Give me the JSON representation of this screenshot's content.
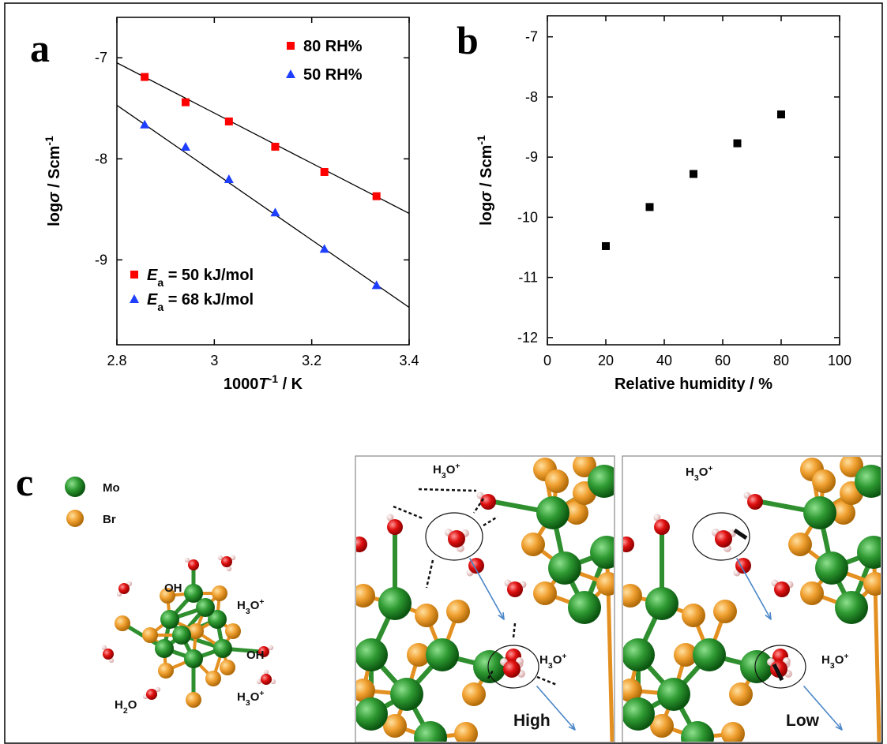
{
  "chart_data": [
    {
      "type": "scatter",
      "x_label": [
        {
          "t": "1000"
        },
        {
          "i": "T"
        },
        {
          "sup": "-1"
        },
        {
          "t": " / K"
        }
      ],
      "y_label": [
        {
          "t": "log"
        },
        {
          "i": "σ"
        },
        {
          "t": " / Scm"
        },
        {
          "sup": "-1"
        }
      ],
      "xlim": [
        2.8,
        3.4
      ],
      "ylim": [
        -9.84,
        -6.6
      ],
      "xticks": [
        2.8,
        3,
        3.2,
        3.4
      ],
      "yticks": [
        -7,
        -8,
        -9
      ],
      "legend": "upper right",
      "series": [
        {
          "name": "80 RH%",
          "color": "#ff0000",
          "marker": "square",
          "x": [
            2.857,
            2.941,
            3.03,
            3.125,
            3.226,
            3.333
          ],
          "values": [
            -7.19,
            -7.44,
            -7.63,
            -7.88,
            -8.13,
            -8.37
          ]
        },
        {
          "name": "50 RH%",
          "color": "#1f3fff",
          "marker": "triangle",
          "x": [
            2.857,
            2.941,
            3.03,
            3.125,
            3.226,
            3.333
          ],
          "values": [
            -7.66,
            -7.88,
            -8.2,
            -8.53,
            -8.89,
            -9.25
          ]
        }
      ],
      "fit_lines": [
        {
          "color": "#000000",
          "x": [
            2.8,
            3.4
          ],
          "values": [
            -7.05,
            -8.54
          ]
        },
        {
          "color": "#000000",
          "x": [
            2.8,
            3.4
          ],
          "values": [
            -7.47,
            -9.47
          ]
        }
      ],
      "annotations": [
        {
          "marker": "square",
          "color": "#ff0000",
          "parts": [
            {
              "i": "E"
            },
            {
              "sub": "a"
            },
            {
              "t": " = 50 kJ/mol"
            }
          ]
        },
        {
          "marker": "triangle",
          "color": "#1f3fff",
          "parts": [
            {
              "i": "E"
            },
            {
              "sub": "a"
            },
            {
              "t": " = 68 kJ/mol"
            }
          ]
        }
      ]
    },
    {
      "type": "scatter",
      "x_label": [
        {
          "t": "Relative humidity / %"
        }
      ],
      "y_label": [
        {
          "t": "log"
        },
        {
          "i": "σ"
        },
        {
          "t": " / Scm"
        },
        {
          "sup": "-1"
        }
      ],
      "xlim": [
        0,
        100
      ],
      "ylim": [
        -12.12,
        -6.65
      ],
      "xticks": [
        0,
        20,
        40,
        60,
        80,
        100
      ],
      "yticks": [
        -7,
        -8,
        -9,
        -10,
        -11,
        -12
      ],
      "series": [
        {
          "color": "#000000",
          "marker": "square",
          "x": [
            20,
            35,
            50,
            65,
            80
          ],
          "values": [
            -10.48,
            -9.83,
            -9.28,
            -8.77,
            -8.29
          ]
        }
      ]
    }
  ],
  "panel_labels": [
    "a",
    "b",
    "c"
  ],
  "panel_c": {
    "labels": [
      {
        "parts": [
          {
            "t": "Mo"
          }
        ]
      },
      {
        "parts": [
          {
            "t": "Br"
          }
        ]
      },
      {
        "parts": [
          {
            "t": "OH"
          }
        ]
      },
      {
        "parts": [
          {
            "t": "H"
          },
          {
            "sub": "3"
          },
          {
            "t": "O"
          },
          {
            "sup": "+"
          }
        ]
      },
      {
        "parts": [
          {
            "t": "OH"
          }
        ]
      },
      {
        "parts": [
          {
            "t": "H"
          },
          {
            "sub": "3"
          },
          {
            "t": "O"
          },
          {
            "sup": "+"
          }
        ]
      },
      {
        "parts": [
          {
            "t": "H"
          },
          {
            "sub": "2"
          },
          {
            "t": "O"
          }
        ]
      },
      {
        "parts": [
          {
            "t": "H"
          },
          {
            "sub": "3"
          },
          {
            "t": "O"
          },
          {
            "sup": "+"
          }
        ]
      },
      {
        "parts": [
          {
            "t": "H"
          },
          {
            "sub": "3"
          },
          {
            "t": "O"
          },
          {
            "sup": "+"
          }
        ]
      },
      {
        "parts": [
          {
            "t": "High"
          }
        ]
      },
      {
        "parts": [
          {
            "t": "H"
          },
          {
            "sub": "3"
          },
          {
            "t": "O"
          },
          {
            "sup": "+"
          }
        ]
      },
      {
        "parts": [
          {
            "t": "H"
          },
          {
            "sub": "3"
          },
          {
            "t": "O"
          },
          {
            "sup": "+"
          }
        ]
      },
      {
        "parts": [
          {
            "t": "Low"
          }
        ]
      }
    ]
  }
}
